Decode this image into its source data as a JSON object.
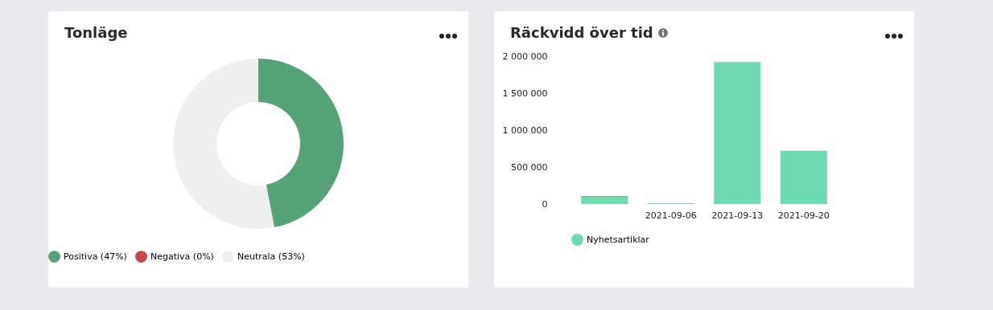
{
  "chart_data": [
    {
      "type": "donut",
      "title": "Tonläge",
      "categories": [
        "Positiva (47%)",
        "Negativa (0%)",
        "Neutrala (53%)"
      ],
      "values": [
        47,
        0,
        53
      ],
      "colors": [
        "#57a378",
        "#cc4650",
        "#efefef"
      ],
      "legend": "bottom"
    },
    {
      "type": "bar",
      "title": "Räckvidd över tid",
      "categories": [
        null,
        "2021-09-06",
        "2021-09-13",
        "2021-09-20"
      ],
      "stacked": true,
      "legend": "bottom",
      "series": [
        {
          "name": "Nyhetsartiklar",
          "color": "#6fdaaf",
          "values": [
            100000,
            10000,
            1920000,
            720000
          ]
        },
        {
          "color": "#57a378",
          "values": [
            10000,
            null,
            null,
            null
          ]
        }
      ],
      "ylim": [
        0,
        2000000
      ],
      "yticks": [
        {
          "value": 0,
          "label": "0"
        },
        {
          "value": 500000,
          "label": "500 000"
        },
        {
          "value": 1000000,
          "label": "1 000 000"
        },
        {
          "value": 1500000,
          "label": "1 500 000"
        },
        {
          "value": 2000000,
          "label": "2 000 000"
        }
      ]
    }
  ]
}
